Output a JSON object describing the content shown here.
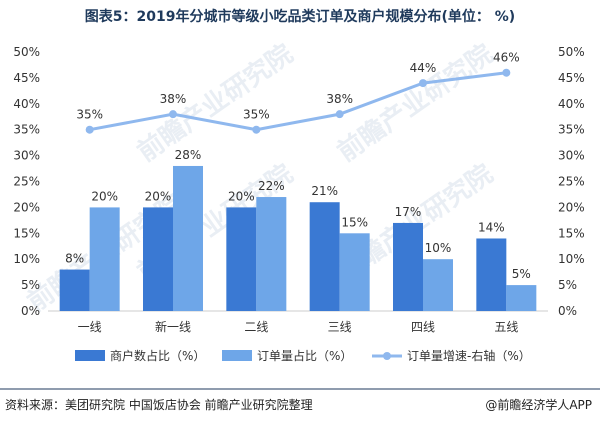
{
  "title": "图表5：2019年分城市等级小吃品类订单及商户规模分布(单位： %)",
  "watermark": "前瞻产业研究院",
  "footer": {
    "source": "资料来源：美团研究院 中国饭店协会 前瞻产业研究院整理",
    "brand": "@前瞻经济学人APP"
  },
  "chart_data": {
    "type": "bar",
    "categories": [
      "一线",
      "新一线",
      "二线",
      "三线",
      "四线",
      "五线"
    ],
    "series": [
      {
        "name": "商户数占比（%）",
        "kind": "bar",
        "color": "#3a79d3",
        "values": [
          8,
          20,
          20,
          21,
          17,
          14
        ]
      },
      {
        "name": "订单量占比（%）",
        "kind": "bar",
        "color": "#6ea6e8",
        "values": [
          20,
          28,
          22,
          15,
          10,
          5
        ]
      },
      {
        "name": "订单量增速-右轴（%）",
        "kind": "line",
        "axis": "right",
        "color": "#8fb8ee",
        "values": [
          35,
          38,
          35,
          38,
          44,
          46
        ]
      }
    ],
    "value_labels": {
      "bar1": [
        "8%",
        "20%",
        "20%",
        "21%",
        "17%",
        "14%"
      ],
      "bar2": [
        "20%",
        "28%",
        "22%",
        "15%",
        "10%",
        "5%"
      ],
      "line": [
        "35%",
        "38%",
        "35%",
        "38%",
        "44%",
        "46%"
      ]
    },
    "ylim": [
      0,
      50
    ],
    "yticks": [
      "0%",
      "5%",
      "10%",
      "15%",
      "20%",
      "25%",
      "30%",
      "35%",
      "40%",
      "45%",
      "50%"
    ],
    "y2lim": [
      0,
      50
    ],
    "y2ticks": [
      "0%",
      "5%",
      "10%",
      "15%",
      "20%",
      "25%",
      "30%",
      "35%",
      "40%",
      "45%",
      "50%"
    ],
    "grid": false,
    "legend": "bottom"
  }
}
